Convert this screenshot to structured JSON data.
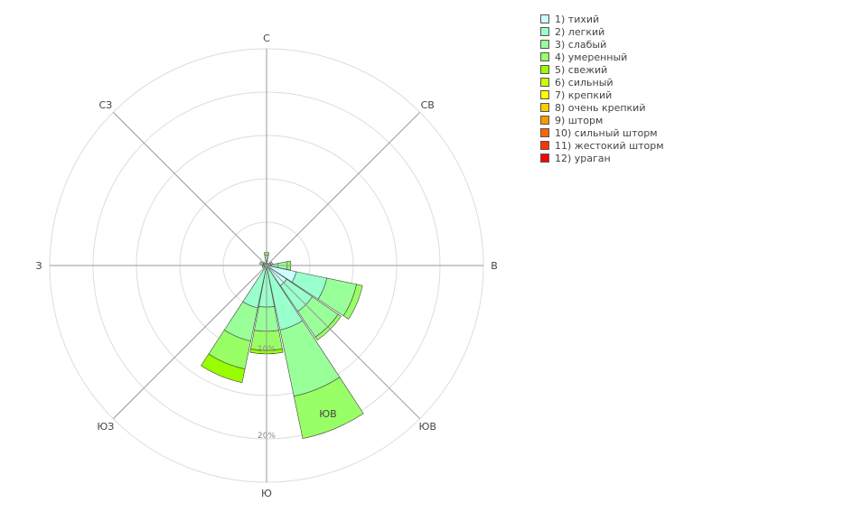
{
  "chart_data": {
    "type": "windrose",
    "title": "",
    "directions": [
      "С",
      "СВ",
      "В",
      "ЮВ",
      "Ю",
      "ЮЗ",
      "З",
      "СЗ"
    ],
    "radial_ticks": [
      "10%",
      "20%"
    ],
    "rmax_percent": 25,
    "grid": true,
    "legend_position": "top-right",
    "highlight_label": "ЮВ",
    "series": [
      {
        "name": "1) тихий",
        "color": "#ccffff"
      },
      {
        "name": "2) легкий",
        "color": "#99ffcc"
      },
      {
        "name": "3) слабый",
        "color": "#99ff99"
      },
      {
        "name": "4) умеренный",
        "color": "#99ff66"
      },
      {
        "name": "5) свежий",
        "color": "#99ff00"
      },
      {
        "name": "6) сильный",
        "color": "#ccff00"
      },
      {
        "name": "7) крепкий",
        "color": "#ffff00"
      },
      {
        "name": "8) очень крепкий",
        "color": "#ffcc00"
      },
      {
        "name": "9) шторм",
        "color": "#ff9900"
      },
      {
        "name": "10) сильный шторм",
        "color": "#ff6600"
      },
      {
        "name": "11) жестокий шторм",
        "color": "#ff3300"
      },
      {
        "name": "12) ураган",
        "color": "#ff0000"
      }
    ],
    "sectors": [
      {
        "direction_deg": 0,
        "cumulative_percent": [
          0.2,
          0.6,
          1.2,
          1.5
        ]
      },
      {
        "direction_deg": 22.5,
        "cumulative_percent": [
          0.1,
          0.2,
          0.3
        ]
      },
      {
        "direction_deg": 45,
        "cumulative_percent": [
          0.1,
          0.2,
          0.3
        ]
      },
      {
        "direction_deg": 67.5,
        "cumulative_percent": [
          0.2,
          0.5,
          0.7
        ]
      },
      {
        "direction_deg": 90,
        "cumulative_percent": [
          0.6,
          1.3,
          2.4,
          2.8
        ]
      },
      {
        "direction_deg": 112.5,
        "cumulative_percent": [
          3.5,
          7.1,
          10.6,
          11.3
        ]
      },
      {
        "direction_deg": 135,
        "cumulative_percent": [
          2.8,
          6.4,
          10.0,
          10.4
        ]
      },
      {
        "direction_deg": 157.5,
        "cumulative_percent": [
          0,
          7.6,
          15.4,
          20.4
        ]
      },
      {
        "direction_deg": 180,
        "cumulative_percent": [
          0,
          4.8,
          7.6,
          9.8,
          10.2
        ]
      },
      {
        "direction_deg": 202.5,
        "cumulative_percent": [
          0,
          5.0,
          8.9,
          12.2,
          13.8
        ]
      },
      {
        "direction_deg": 225,
        "cumulative_percent": [
          0.1,
          0.3
        ]
      },
      {
        "direction_deg": 247.5,
        "cumulative_percent": [
          0.1,
          0.3,
          0.5
        ]
      },
      {
        "direction_deg": 270,
        "cumulative_percent": [
          0.1,
          0.3,
          0.5
        ]
      },
      {
        "direction_deg": 292.5,
        "cumulative_percent": [
          0.2,
          0.4,
          0.8
        ]
      },
      {
        "direction_deg": 315,
        "cumulative_percent": [
          0.1,
          0.3,
          0.5
        ]
      },
      {
        "direction_deg": 337.5,
        "cumulative_percent": [
          0.1,
          0.2,
          0.3
        ]
      }
    ]
  }
}
